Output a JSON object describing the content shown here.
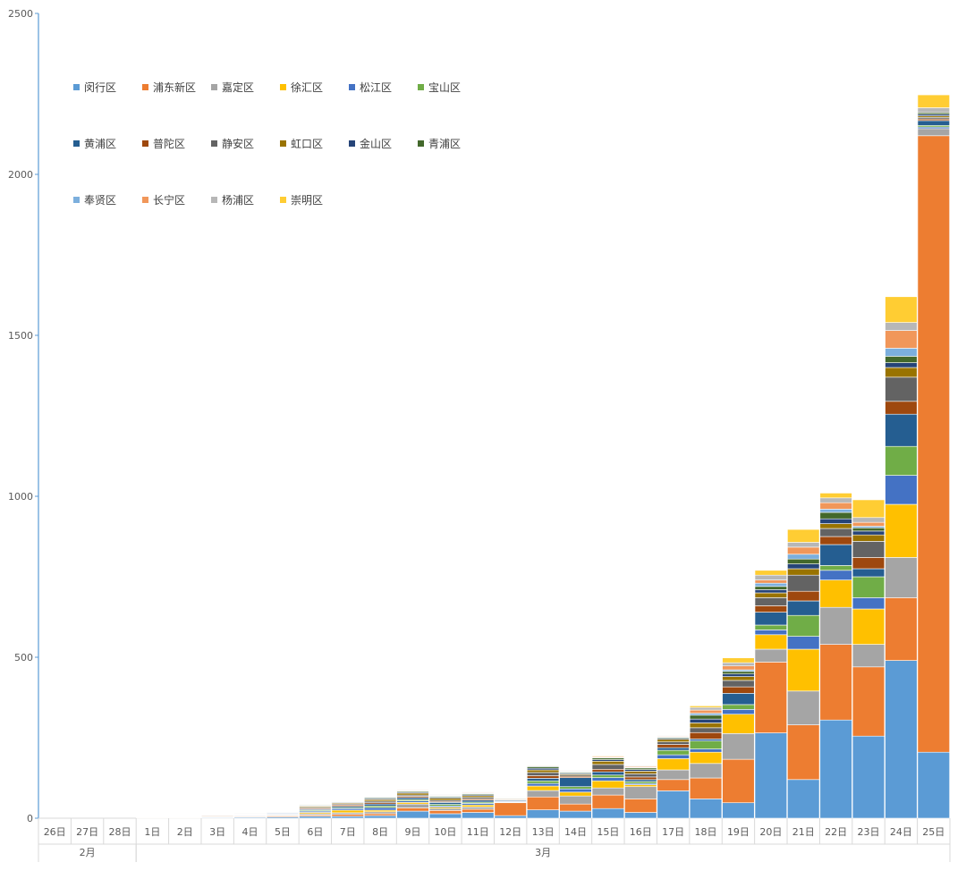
{
  "chart_data": {
    "type": "bar",
    "stacked": true,
    "ylim": [
      0,
      2500
    ],
    "yticks": [
      0,
      500,
      1000,
      1500,
      2000,
      2500
    ],
    "legend_position": "top-left",
    "groups": [
      {
        "label": "2月",
        "categories": [
          "26日",
          "27日",
          "28日"
        ]
      },
      {
        "label": "3月",
        "categories": [
          "1日",
          "2日",
          "3日",
          "4日",
          "5日",
          "6日",
          "7日",
          "8日",
          "9日",
          "10日",
          "11日",
          "12日",
          "13日",
          "14日",
          "15日",
          "16日",
          "17日",
          "18日",
          "19日",
          "20日",
          "21日",
          "22日",
          "23日",
          "24日",
          "25日"
        ]
      }
    ],
    "categories": [
      "26日",
      "27日",
      "28日",
      "1日",
      "2日",
      "3日",
      "4日",
      "5日",
      "6日",
      "7日",
      "8日",
      "9日",
      "10日",
      "11日",
      "12日",
      "13日",
      "14日",
      "15日",
      "16日",
      "17日",
      "18日",
      "19日",
      "20日",
      "21日",
      "22日",
      "23日",
      "24日",
      "25日"
    ],
    "series": [
      {
        "name": "闵行区",
        "color": "#5B9BD5",
        "values": [
          0,
          0,
          0,
          1,
          1,
          2,
          3,
          4,
          6,
          6,
          8,
          22,
          14,
          18,
          8,
          26,
          22,
          30,
          18,
          85,
          60,
          48,
          265,
          120,
          305,
          255,
          490,
          205
        ]
      },
      {
        "name": "浦东新区",
        "color": "#ED7D31",
        "values": [
          0,
          0,
          0,
          1,
          1,
          2,
          2,
          3,
          4,
          6,
          6,
          10,
          10,
          10,
          40,
          40,
          22,
          42,
          42,
          35,
          65,
          135,
          220,
          170,
          235,
          215,
          195,
          1915
        ]
      },
      {
        "name": "嘉定区",
        "color": "#A5A5A5",
        "values": [
          0,
          0,
          0,
          0,
          1,
          1,
          2,
          2,
          4,
          5,
          6,
          12,
          6,
          7,
          2,
          20,
          25,
          22,
          38,
          30,
          45,
          80,
          40,
          105,
          115,
          70,
          125,
          22
        ]
      },
      {
        "name": "徐汇区",
        "color": "#FFC000",
        "values": [
          0,
          0,
          0,
          0,
          0,
          1,
          1,
          2,
          4,
          8,
          5,
          5,
          4,
          6,
          0,
          14,
          12,
          22,
          6,
          35,
          35,
          60,
          45,
          130,
          85,
          110,
          165,
          0
        ]
      },
      {
        "name": "松江区",
        "color": "#4472C4",
        "values": [
          0,
          0,
          0,
          0,
          0,
          0,
          1,
          2,
          4,
          5,
          8,
          5,
          4,
          5,
          2,
          8,
          10,
          10,
          4,
          12,
          10,
          15,
          15,
          40,
          30,
          35,
          90,
          5
        ]
      },
      {
        "name": "宝山区",
        "color": "#70AD47",
        "values": [
          0,
          0,
          0,
          0,
          0,
          0,
          1,
          1,
          3,
          3,
          5,
          4,
          5,
          4,
          1,
          8,
          7,
          8,
          6,
          14,
          25,
          15,
          15,
          65,
          15,
          65,
          90,
          5
        ]
      },
      {
        "name": "黄浦区",
        "color": "#255E91",
        "values": [
          0,
          0,
          0,
          0,
          0,
          1,
          1,
          2,
          3,
          4,
          6,
          6,
          6,
          6,
          3,
          8,
          28,
          10,
          6,
          8,
          6,
          35,
          40,
          45,
          65,
          25,
          100,
          15
        ]
      },
      {
        "name": "普陀区",
        "color": "#9E480E",
        "values": [
          0,
          0,
          0,
          0,
          1,
          2,
          1,
          1,
          3,
          4,
          4,
          4,
          3,
          4,
          2,
          8,
          4,
          8,
          8,
          10,
          20,
          20,
          20,
          30,
          25,
          35,
          40,
          5
        ]
      },
      {
        "name": "静安区",
        "color": "#636363",
        "values": [
          0,
          0,
          0,
          0,
          0,
          1,
          1,
          1,
          3,
          3,
          5,
          4,
          4,
          5,
          2,
          10,
          4,
          15,
          10,
          8,
          15,
          20,
          25,
          50,
          25,
          50,
          75,
          5
        ]
      },
      {
        "name": "虹口区",
        "color": "#997300",
        "values": [
          0,
          0,
          0,
          0,
          0,
          1,
          1,
          1,
          3,
          3,
          5,
          6,
          6,
          5,
          2,
          8,
          3,
          10,
          8,
          8,
          15,
          12,
          15,
          20,
          15,
          20,
          30,
          5
        ]
      },
      {
        "name": "金山区",
        "color": "#264478",
        "values": [
          0,
          0,
          0,
          0,
          0,
          0,
          1,
          1,
          2,
          2,
          3,
          3,
          3,
          3,
          1,
          5,
          3,
          5,
          5,
          3,
          12,
          8,
          10,
          15,
          15,
          12,
          15,
          5
        ]
      },
      {
        "name": "青浦区",
        "color": "#43682B",
        "values": [
          0,
          0,
          0,
          0,
          0,
          0,
          1,
          1,
          2,
          2,
          3,
          3,
          3,
          3,
          1,
          5,
          3,
          5,
          5,
          3,
          12,
          8,
          10,
          15,
          20,
          10,
          20,
          5
        ]
      },
      {
        "name": "奉贤区",
        "color": "#7CAFDD",
        "values": [
          0,
          0,
          0,
          0,
          0,
          0,
          0,
          1,
          1,
          1,
          2,
          2,
          2,
          2,
          0,
          2,
          2,
          2,
          2,
          2,
          6,
          5,
          10,
          15,
          10,
          5,
          25,
          0
        ]
      },
      {
        "name": "长宁区",
        "color": "#F1975A",
        "values": [
          0,
          0,
          0,
          0,
          0,
          0,
          0,
          0,
          1,
          1,
          1,
          2,
          2,
          2,
          0,
          2,
          2,
          3,
          3,
          2,
          10,
          12,
          10,
          22,
          20,
          12,
          55,
          0
        ]
      },
      {
        "name": "杨浦区",
        "color": "#B7B7B7",
        "values": [
          0,
          0,
          0,
          0,
          0,
          0,
          0,
          0,
          1,
          1,
          1,
          1,
          2,
          2,
          0,
          1,
          2,
          1,
          2,
          2,
          8,
          10,
          15,
          15,
          15,
          15,
          25,
          15
        ]
      },
      {
        "name": "崇明区",
        "color": "#FFCD33",
        "values": [
          0,
          0,
          0,
          0,
          0,
          0,
          0,
          0,
          1,
          1,
          1,
          0,
          1,
          1,
          0,
          1,
          1,
          2,
          1,
          1,
          5,
          15,
          15,
          40,
          15,
          55,
          80,
          40
        ]
      }
    ]
  }
}
